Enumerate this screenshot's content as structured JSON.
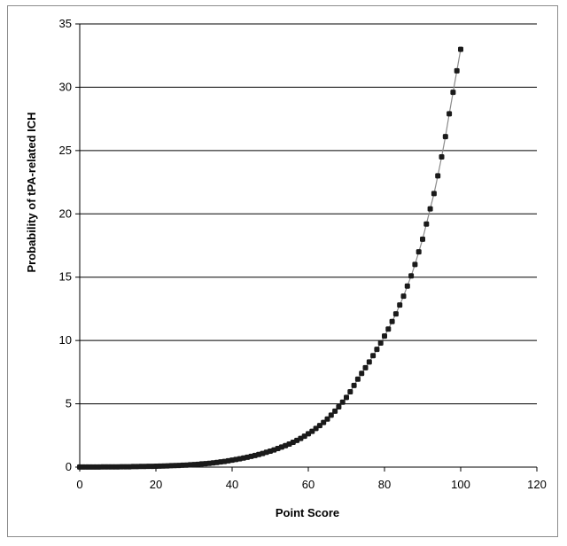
{
  "chart_data": {
    "type": "scatter",
    "title": "",
    "xlabel": "Point Score",
    "ylabel": "Probability of tPA-related ICH",
    "xlim": [
      0,
      120
    ],
    "ylim": [
      0,
      35
    ],
    "xticks": [
      0,
      20,
      40,
      60,
      80,
      100,
      120
    ],
    "yticks": [
      0,
      5,
      10,
      15,
      20,
      25,
      30,
      35
    ],
    "grid": "horizontal",
    "legend": "none",
    "line": true,
    "colors": {
      "marker": "#1a1a1a",
      "line": "#8a8a8a",
      "grid": "#000000",
      "axis": "#000000"
    },
    "series": [
      {
        "x": [
          0,
          1,
          2,
          3,
          4,
          5,
          6,
          7,
          8,
          9,
          10,
          11,
          12,
          13,
          14,
          15,
          16,
          17,
          18,
          19,
          20,
          21,
          22,
          23,
          24,
          25,
          26,
          27,
          28,
          29,
          30,
          31,
          32,
          33,
          34,
          35,
          36,
          37,
          38,
          39,
          40,
          41,
          42,
          43,
          44,
          45,
          46,
          47,
          48,
          49,
          50,
          51,
          52,
          53,
          54,
          55,
          56,
          57,
          58,
          59,
          60,
          61,
          62,
          63,
          64,
          65,
          66,
          67,
          68,
          69,
          70,
          71,
          72,
          73,
          74,
          75,
          76,
          77,
          78,
          79,
          80,
          81,
          82,
          83,
          84,
          85,
          86,
          87,
          88,
          89,
          90,
          91,
          92,
          93,
          94,
          95,
          96,
          97,
          98,
          99,
          100
        ],
        "y": [
          0.01,
          0.01,
          0.01,
          0.01,
          0.01,
          0.01,
          0.02,
          0.02,
          0.02,
          0.02,
          0.02,
          0.03,
          0.03,
          0.03,
          0.04,
          0.04,
          0.05,
          0.05,
          0.06,
          0.06,
          0.07,
          0.08,
          0.09,
          0.1,
          0.11,
          0.12,
          0.13,
          0.15,
          0.16,
          0.18,
          0.2,
          0.22,
          0.25,
          0.27,
          0.3,
          0.33,
          0.37,
          0.41,
          0.45,
          0.5,
          0.55,
          0.6,
          0.66,
          0.72,
          0.78,
          0.85,
          0.92,
          1.0,
          1.08,
          1.17,
          1.26,
          1.36,
          1.47,
          1.58,
          1.7,
          1.82,
          1.96,
          2.11,
          2.27,
          2.44,
          2.63,
          2.83,
          3.05,
          3.28,
          3.53,
          3.8,
          4.1,
          4.42,
          4.76,
          5.13,
          5.5,
          5.95,
          6.45,
          6.95,
          7.4,
          7.85,
          8.3,
          8.8,
          9.3,
          9.8,
          10.35,
          10.9,
          11.5,
          12.1,
          12.8,
          13.5,
          14.3,
          15.1,
          16.0,
          17.0,
          18.0,
          19.2,
          20.4,
          21.6,
          23.0,
          24.5,
          26.1,
          27.9,
          29.6,
          31.3,
          33.0
        ]
      }
    ]
  }
}
